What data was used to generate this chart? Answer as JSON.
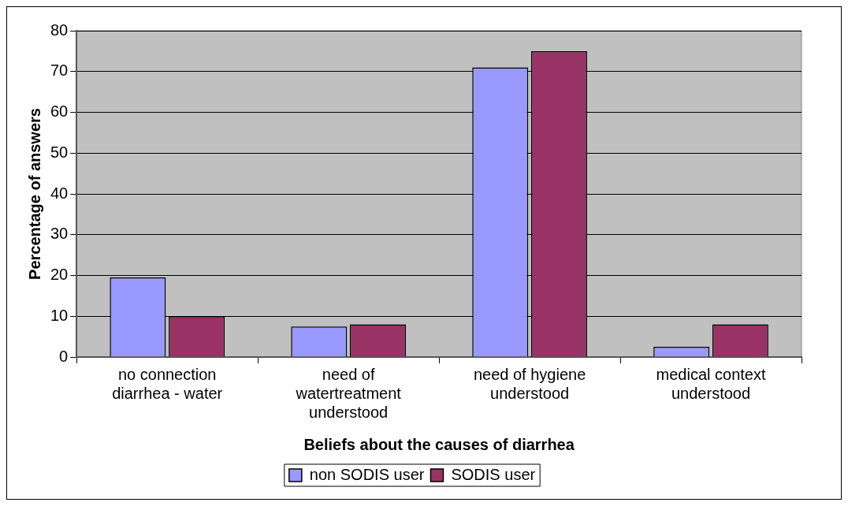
{
  "chart_data": {
    "type": "bar",
    "xlabel": "Beliefs about the causes of diarrhea",
    "ylabel": "Percentage of answers",
    "categories": [
      "no connection diarrhea - water",
      "need of watertreatment understood",
      "need of hygiene understood",
      "medical context understood"
    ],
    "series": [
      {
        "name": "non SODIS user",
        "color": "#9999ff",
        "values": [
          19.5,
          7.5,
          71,
          2.5
        ]
      },
      {
        "name": "SODIS user",
        "color": "#993366",
        "values": [
          10,
          8,
          75,
          8
        ]
      }
    ],
    "ylim": [
      0,
      80
    ],
    "yticks": [
      0,
      10,
      20,
      30,
      40,
      50,
      60,
      70,
      80
    ],
    "grid": "y",
    "legend": "bottom"
  }
}
